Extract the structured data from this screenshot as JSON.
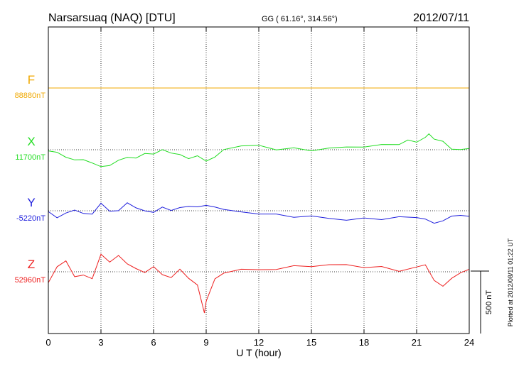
{
  "chart_data": {
    "type": "line",
    "title": "Narsarsuaq (NAQ)  [DTU]",
    "coords": "GG ( 61.16°, 314.56°)",
    "date": "2012/07/11",
    "xlabel": "U T (hour)",
    "xlim": [
      0,
      24
    ],
    "x_ticks": [
      0,
      3,
      6,
      9,
      12,
      15,
      18,
      21,
      24
    ],
    "x_tick_labels": [
      "0",
      "3",
      "6",
      "9",
      "12",
      "15",
      "18",
      "21",
      "24"
    ],
    "grid": true,
    "scale_bar_label": "500 nT",
    "plotted_note": "Plotted at 2012/08/11 01:22 UT",
    "series": [
      {
        "name": "F",
        "baseline_label": "88880nT",
        "color": "#f0a800",
        "x": [
          0,
          1,
          2,
          3,
          4,
          5,
          6,
          7,
          8,
          9,
          10,
          11,
          12,
          13,
          14,
          15,
          16,
          17,
          18,
          19,
          20,
          21,
          22,
          23,
          24
        ],
        "y": [
          0,
          0,
          0,
          0,
          0,
          0,
          0,
          0,
          0,
          0,
          0,
          0,
          0,
          0,
          0,
          0,
          0,
          0,
          0,
          0,
          0,
          0,
          0,
          0,
          0
        ]
      },
      {
        "name": "X",
        "baseline_label": "11700nT",
        "color": "#22dd22",
        "x": [
          0,
          0.5,
          1,
          1.5,
          2,
          2.5,
          3,
          3.5,
          4,
          4.5,
          5,
          5.5,
          6,
          6.5,
          7,
          7.5,
          8,
          8.5,
          9,
          9.5,
          10,
          11,
          12,
          13,
          14,
          15,
          16,
          17,
          18,
          19,
          20,
          20.5,
          21,
          21.5,
          21.7,
          22,
          22.5,
          23,
          23.5,
          24
        ],
        "y": [
          -20,
          -45,
          -65,
          -80,
          -95,
          -110,
          -120,
          -125,
          -85,
          -40,
          -50,
          -30,
          -20,
          20,
          -30,
          -40,
          -60,
          -55,
          -110,
          -60,
          -5,
          20,
          20,
          10,
          10,
          10,
          25,
          25,
          35,
          25,
          40,
          55,
          45,
          100,
          130,
          70,
          50,
          10,
          5,
          0
        ]
      },
      {
        "name": "Y",
        "baseline_label": "-5220nT",
        "color": "#2020dd",
        "x": [
          0,
          0.5,
          1,
          1.5,
          2,
          2.5,
          3,
          3.5,
          4,
          4.5,
          5,
          5.5,
          6,
          6.5,
          7,
          7.5,
          8,
          8.5,
          9,
          9.5,
          10,
          11,
          12,
          13,
          14,
          15,
          16,
          17,
          18,
          19,
          20,
          21,
          21.5,
          22,
          22.5,
          23,
          23.5,
          24
        ],
        "y": [
          -10,
          -40,
          -15,
          5,
          0,
          -10,
          60,
          10,
          20,
          60,
          20,
          10,
          -20,
          10,
          0,
          20,
          10,
          20,
          45,
          15,
          0,
          -5,
          -10,
          -25,
          -30,
          -45,
          -60,
          -80,
          -80,
          -70,
          -65,
          -50,
          -75,
          -90,
          -60,
          -40,
          -30,
          -20
        ]
      },
      {
        "name": "Z",
        "baseline_label": "52960nT",
        "color": "#ee2020",
        "x": [
          0,
          0.5,
          1,
          1.5,
          2,
          2.5,
          3,
          3.5,
          4,
          4.5,
          5,
          5.5,
          6,
          6.5,
          7,
          7.5,
          8,
          8.5,
          8.9,
          9,
          9.5,
          10,
          11,
          12,
          13,
          14,
          15,
          16,
          17,
          18,
          19,
          20,
          21,
          21.5,
          22,
          22.5,
          23,
          23.5,
          24
        ],
        "y": [
          -70,
          40,
          100,
          -20,
          -30,
          -60,
          150,
          70,
          110,
          60,
          20,
          -30,
          30,
          -20,
          -60,
          10,
          -40,
          -100,
          -330,
          -240,
          -40,
          10,
          30,
          20,
          30,
          30,
          40,
          40,
          45,
          40,
          35,
          25,
          45,
          80,
          -60,
          -120,
          -40,
          0,
          5
        ]
      }
    ]
  }
}
